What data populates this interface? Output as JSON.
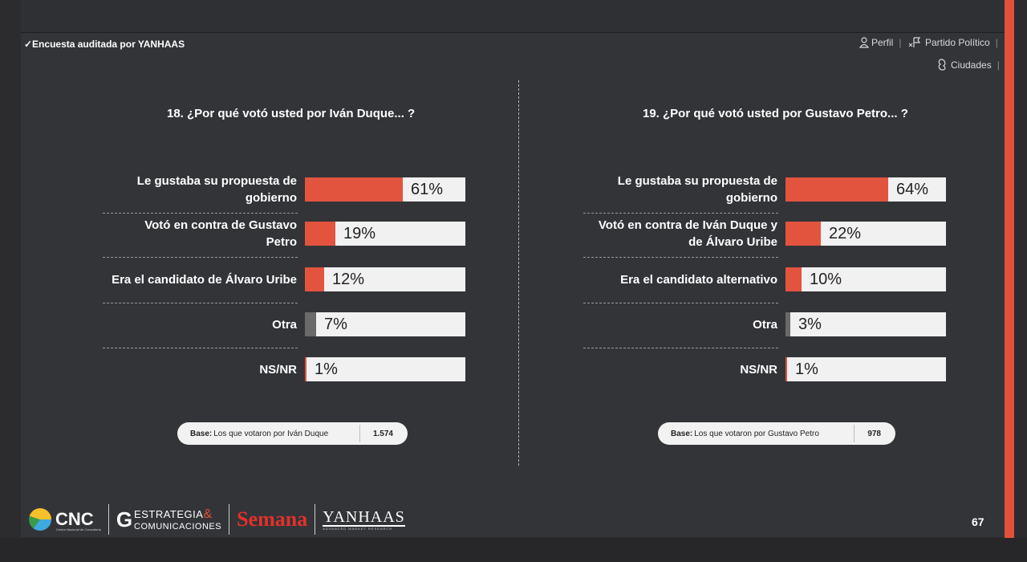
{
  "header": {
    "audit_text": "✓Encuesta auditada por YANHAAS",
    "nav": {
      "perfil": "Perfil",
      "partido": "Partido Político",
      "ciudades": "Ciudades"
    }
  },
  "chart_data": [
    {
      "type": "bar",
      "orientation": "horizontal",
      "title": "18. ¿Por qué votó usted por Iván Duque... ?",
      "categories": [
        "Le gustaba su propuesta de gobierno",
        "Votó en contra de Gustavo Petro",
        "Era el candidato de Álvaro Uribe",
        "Otra",
        "NS/NR"
      ],
      "label_lines": [
        [
          "Le gustaba su propuesta de",
          "gobierno"
        ],
        [
          "Votó en contra de Gustavo",
          "Petro"
        ],
        [
          "Era el candidato de Álvaro Uribe"
        ],
        [
          "Otra"
        ],
        [
          "NS/NR"
        ]
      ],
      "values": [
        61,
        19,
        12,
        7,
        1
      ],
      "value_labels": [
        "61%",
        "19%",
        "12%",
        "7%",
        "1%"
      ],
      "bar_colors": [
        "#e2543e",
        "#e2543e",
        "#e2543e",
        "#6a6a6a",
        "#e2543e"
      ],
      "xlim": [
        0,
        100
      ],
      "base": {
        "label": "Base:",
        "text": "Los que votaron por Iván Duque",
        "n": "1.574"
      }
    },
    {
      "type": "bar",
      "orientation": "horizontal",
      "title": "19. ¿Por qué votó usted por Gustavo Petro... ?",
      "categories": [
        "Le gustaba su propuesta de gobierno",
        "Votó en contra de Iván Duque y de Álvaro Uribe",
        "Era el candidato alternativo",
        "Otra",
        "NS/NR"
      ],
      "label_lines": [
        [
          "Le gustaba su propuesta de",
          "gobierno"
        ],
        [
          "Votó en contra de Iván Duque y",
          "de Álvaro Uribe"
        ],
        [
          "Era el candidato alternativo"
        ],
        [
          "Otra"
        ],
        [
          "NS/NR"
        ]
      ],
      "values": [
        64,
        22,
        10,
        3,
        1
      ],
      "value_labels": [
        "64%",
        "22%",
        "10%",
        "3%",
        "1%"
      ],
      "bar_colors": [
        "#e2543e",
        "#e2543e",
        "#e2543e",
        "#6a6a6a",
        "#e2543e"
      ],
      "xlim": [
        0,
        100
      ],
      "base": {
        "label": "Base:",
        "text": "Los que votaron por Gustavo Petro",
        "n": "978"
      }
    }
  ],
  "footer": {
    "logos": {
      "cnc": "CNC",
      "cnc_sub": "Centro Nacional de Consultoría",
      "estrategia_top": "ESTRATEGIA",
      "estrategia_amp": "&",
      "estrategia_bottom": "COMUNICACIONES",
      "semana": "Semana",
      "yanhaas": "YANHAAS",
      "yanhaas_sub": "ADVANCED MARKET RESEARCH"
    },
    "page_number": "67"
  }
}
